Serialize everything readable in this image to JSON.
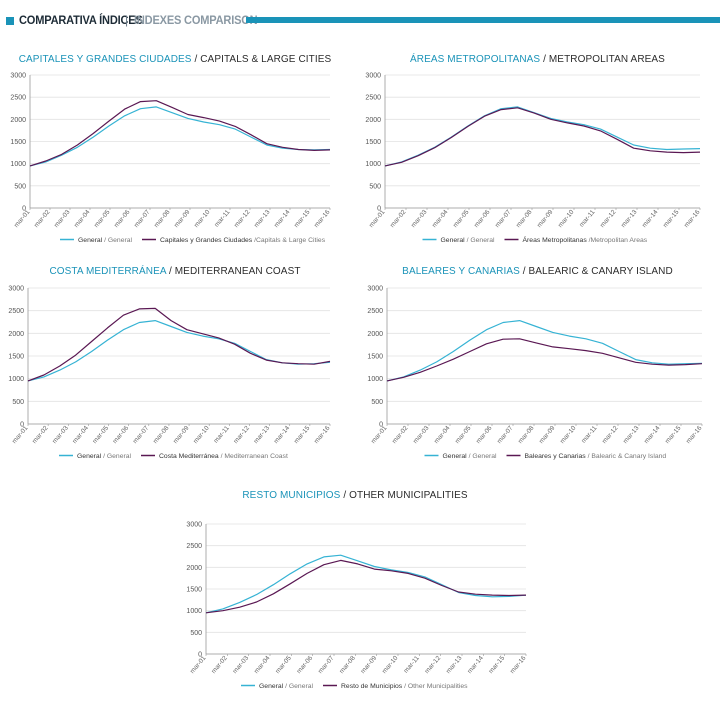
{
  "header": {
    "title_es": "COMPARATIVA ÍNDICES",
    "separator": "|",
    "title_en": "INDEXES COMPARISON"
  },
  "colors": {
    "general": "#36b3d4",
    "segment": "#5a1853",
    "accent": "#1a93b8",
    "axis": "#9a9a9a",
    "grid": "#e2e2e2"
  },
  "chart_data": [
    {
      "id": "capitales",
      "type": "line",
      "title_es": "CAPITALES Y GRANDES CIUDADES",
      "title_en": "/ CAPITALS & LARGE CITIES",
      "yticks": [
        "0",
        "500",
        "1000",
        "1500",
        "2000",
        "2500",
        "3000"
      ],
      "ylim": [
        0,
        3000
      ],
      "xticks": [
        "mar-01",
        "mar-02",
        "mar-03",
        "mar-04",
        "mar-05",
        "mar-06",
        "mar-07",
        "mar-08",
        "mar-09",
        "mar-10",
        "mar-11",
        "mar-12",
        "mar-13",
        "mar-14",
        "mar-15",
        "mar-16"
      ],
      "legend": [
        {
          "label": "General",
          "sub": "/ General"
        },
        {
          "label": "Capitales y Grandes Ciudades",
          "sub": "/Capitals & Large Cities"
        }
      ],
      "series": [
        {
          "name": "General",
          "values": [
            950,
            1040,
            1190,
            1370,
            1600,
            1850,
            2080,
            2240,
            2280,
            2150,
            2020,
            1940,
            1880,
            1780,
            1600,
            1420,
            1350,
            1320,
            1310,
            1320
          ]
        },
        {
          "name": "Capitales y Grandes Ciudades",
          "values": [
            950,
            1060,
            1210,
            1420,
            1680,
            1960,
            2230,
            2400,
            2420,
            2270,
            2110,
            2040,
            1960,
            1840,
            1650,
            1450,
            1370,
            1320,
            1300,
            1310
          ]
        }
      ]
    },
    {
      "id": "areas",
      "type": "line",
      "title_es": "ÁREAS METROPOLITANAS",
      "title_en": "/ METROPOLITAN AREAS",
      "yticks": [
        "0",
        "500",
        "1000",
        "1500",
        "2000",
        "2500",
        "3000"
      ],
      "ylim": [
        0,
        3000
      ],
      "xticks": [
        "mar-01",
        "mar-02",
        "mar-03",
        "mar-04",
        "mar-05",
        "mar-06",
        "mar-07",
        "mar-08",
        "mar-09",
        "mar-10",
        "mar-11",
        "mar-12",
        "mar-13",
        "mar-14",
        "mar-15",
        "mar-16"
      ],
      "legend": [
        {
          "label": "General",
          "sub": "/ General"
        },
        {
          "label": "Áreas Metropolitanas",
          "sub": "/Metropolitan Areas"
        }
      ],
      "series": [
        {
          "name": "General",
          "values": [
            950,
            1040,
            1190,
            1370,
            1600,
            1850,
            2080,
            2240,
            2280,
            2150,
            2020,
            1940,
            1880,
            1780,
            1600,
            1420,
            1350,
            1320,
            1330,
            1340
          ]
        },
        {
          "name": "Áreas Metropolitanas",
          "values": [
            950,
            1030,
            1180,
            1360,
            1590,
            1840,
            2070,
            2220,
            2260,
            2140,
            2000,
            1920,
            1850,
            1740,
            1550,
            1350,
            1290,
            1260,
            1250,
            1260
          ]
        }
      ]
    },
    {
      "id": "costa",
      "type": "line",
      "title_es": "COSTA MEDITERRÁNEA",
      "title_en": "/ MEDITERRANEAN COAST",
      "yticks": [
        "0",
        "500",
        "1000",
        "1500",
        "2000",
        "2500",
        "3000"
      ],
      "ylim": [
        0,
        3000
      ],
      "xticks": [
        "mar-01",
        "mar-02",
        "mar-03",
        "mar-04",
        "mar-05",
        "mar-06",
        "mar-07",
        "mar-08",
        "mar-09",
        "mar-10",
        "mar-11",
        "mar-12",
        "mar-13",
        "mar-14",
        "mar-15",
        "mar-16"
      ],
      "legend": [
        {
          "label": "General",
          "sub": "/ General"
        },
        {
          "label": "Costa Mediterránea",
          "sub": "/ Mediterranean Coast"
        }
      ],
      "series": [
        {
          "name": "General",
          "values": [
            950,
            1040,
            1190,
            1370,
            1600,
            1850,
            2080,
            2240,
            2280,
            2150,
            2020,
            1940,
            1880,
            1780,
            1600,
            1420,
            1350,
            1320,
            1330,
            1360
          ]
        },
        {
          "name": "Costa Mediterránea",
          "values": [
            950,
            1080,
            1280,
            1520,
            1820,
            2120,
            2400,
            2540,
            2550,
            2280,
            2080,
            1990,
            1900,
            1760,
            1560,
            1410,
            1350,
            1330,
            1320,
            1380
          ]
        }
      ]
    },
    {
      "id": "baleares",
      "type": "line",
      "title_es": "BALEARES Y CANARIAS",
      "title_en": "/ BALEARIC & CANARY ISLAND",
      "yticks": [
        "0",
        "500",
        "1000",
        "1500",
        "2000",
        "2500",
        "3000"
      ],
      "ylim": [
        0,
        3000
      ],
      "xticks": [
        "mar-01",
        "mar-02",
        "mar-03",
        "mar-04",
        "mar-05",
        "mar-06",
        "mar-07",
        "mar-08",
        "mar-09",
        "mar-10",
        "mar-11",
        "mar-12",
        "mar-13",
        "mar-14",
        "mar-15",
        "mar-16"
      ],
      "legend": [
        {
          "label": "General",
          "sub": "/ General"
        },
        {
          "label": "Baleares y Canarias",
          "sub": "/ Balearic & Canary Island"
        }
      ],
      "series": [
        {
          "name": "General",
          "values": [
            950,
            1040,
            1190,
            1370,
            1600,
            1850,
            2080,
            2240,
            2280,
            2150,
            2020,
            1940,
            1880,
            1780,
            1600,
            1420,
            1350,
            1320,
            1330,
            1340
          ]
        },
        {
          "name": "Baleares y Canarias",
          "values": [
            950,
            1030,
            1140,
            1280,
            1430,
            1600,
            1770,
            1870,
            1880,
            1790,
            1700,
            1660,
            1620,
            1560,
            1460,
            1360,
            1320,
            1300,
            1310,
            1330
          ]
        }
      ]
    },
    {
      "id": "resto",
      "type": "line",
      "title_es": "RESTO MUNICIPIOS",
      "title_en": "/ OTHER MUNICIPALITIES",
      "yticks": [
        "0",
        "500",
        "1000",
        "1500",
        "2000",
        "2500",
        "3000"
      ],
      "ylim": [
        0,
        3000
      ],
      "xticks": [
        "mar-01",
        "mar-02",
        "mar-03",
        "mar-04",
        "mar-05",
        "mar-06",
        "mar-07",
        "mar-08",
        "mar-09",
        "mar-10",
        "mar-11",
        "mar-12",
        "mar-13",
        "mar-14",
        "mar-15",
        "mar-16"
      ],
      "legend": [
        {
          "label": "General",
          "sub": "/ General"
        },
        {
          "label": "Resto de Municipios",
          "sub": "/ Other Municipalities"
        }
      ],
      "series": [
        {
          "name": "General",
          "values": [
            950,
            1040,
            1190,
            1370,
            1600,
            1850,
            2080,
            2240,
            2280,
            2150,
            2020,
            1940,
            1880,
            1780,
            1600,
            1420,
            1350,
            1320,
            1330,
            1360
          ]
        },
        {
          "name": "Resto de Municipios",
          "values": [
            950,
            1000,
            1080,
            1200,
            1390,
            1620,
            1860,
            2060,
            2160,
            2080,
            1960,
            1920,
            1860,
            1750,
            1580,
            1430,
            1380,
            1360,
            1350,
            1360
          ]
        }
      ]
    }
  ]
}
